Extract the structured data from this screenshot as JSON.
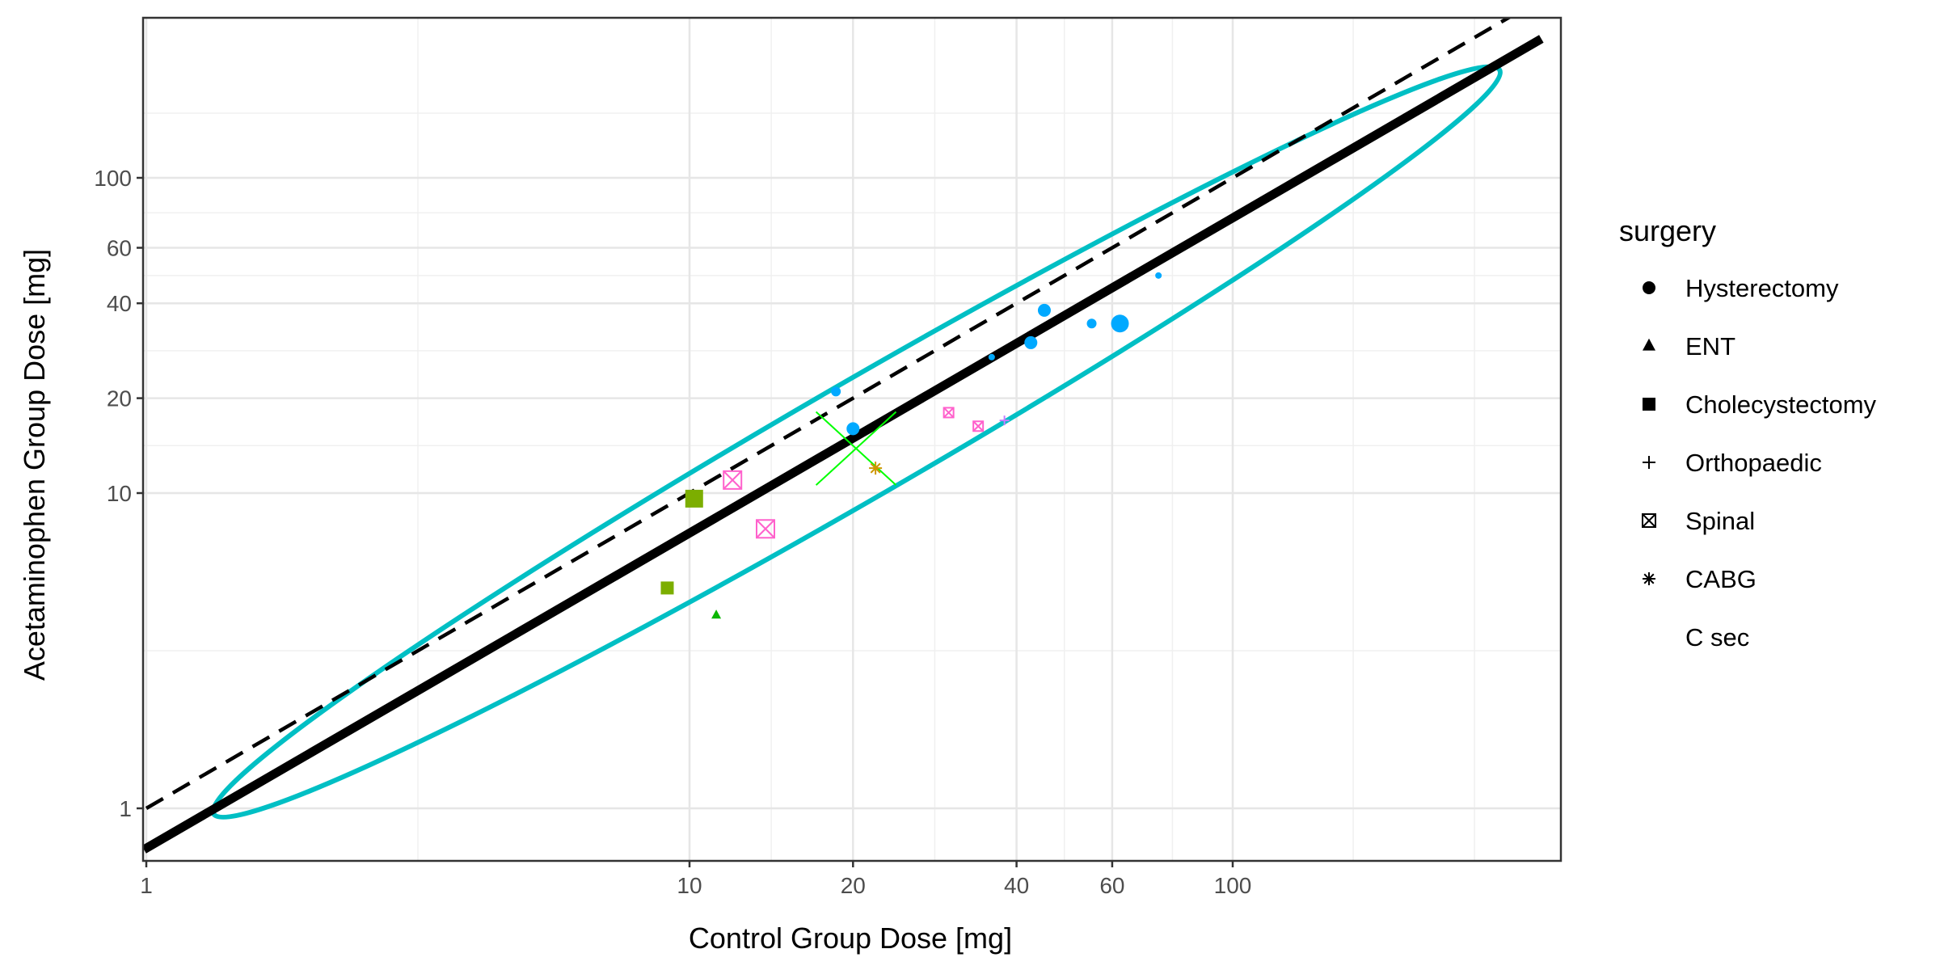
{
  "chart_data": {
    "type": "scatter",
    "xlabel": "Control Group Dose [mg]",
    "ylabel": "Acetaminophen Group Dose [mg]",
    "x_scale": "log",
    "y_scale": "log",
    "xlim": [
      1,
      370
    ],
    "ylim": [
      0.7,
      420
    ],
    "x_ticks": [
      1,
      10,
      20,
      40,
      60,
      100
    ],
    "x_tick_labels": [
      "1",
      "10",
      "20",
      "40",
      "60",
      "100"
    ],
    "y_ticks": [
      1,
      10,
      20,
      40,
      60,
      100
    ],
    "y_tick_labels": [
      "1",
      "10",
      "20",
      "40",
      "60",
      "100"
    ],
    "grid": true,
    "legend_title": "surgery",
    "legend_position": "right",
    "legend": [
      {
        "label": "Hysterectomy",
        "shape": "circle"
      },
      {
        "label": "ENT",
        "shape": "triangle"
      },
      {
        "label": "Cholecystectomy",
        "shape": "square"
      },
      {
        "label": "Orthopaedic",
        "shape": "plus"
      },
      {
        "label": "Spinal",
        "shape": "boxed-x"
      },
      {
        "label": "CABG",
        "shape": "asterisk"
      },
      {
        "label": "C sec",
        "shape": "none"
      }
    ],
    "colors": {
      "Hysterectomy": "#00a9ff",
      "ENT": "#0cb702",
      "Cholecystectomy": "#7cae00",
      "Orthopaedic": "#c77cff",
      "Spinal": "#ff61cc",
      "CABG": "#cd9600",
      "ellipse": "#00bfc4",
      "summary_cross": "#00ff00",
      "identity_line": "#000000",
      "fit_line": "#000000"
    },
    "points": [
      {
        "surgery": "Hysterectomy",
        "x": 18.6,
        "y": 21,
        "size": "small"
      },
      {
        "surgery": "Hysterectomy",
        "x": 20,
        "y": 16,
        "size": "medium"
      },
      {
        "surgery": "Hysterectomy",
        "x": 45,
        "y": 38,
        "size": "medium"
      },
      {
        "surgery": "Hysterectomy",
        "x": 42.5,
        "y": 30,
        "size": "medium"
      },
      {
        "surgery": "Hysterectomy",
        "x": 36,
        "y": 27,
        "size": "tiny"
      },
      {
        "surgery": "Hysterectomy",
        "x": 55,
        "y": 34.5,
        "size": "small"
      },
      {
        "surgery": "Hysterectomy",
        "x": 62,
        "y": 34.5,
        "size": "large"
      },
      {
        "surgery": "Hysterectomy",
        "x": 73,
        "y": 49,
        "size": "tiny"
      },
      {
        "surgery": "ENT",
        "x": 11.2,
        "y": 4.1,
        "size": "small"
      },
      {
        "surgery": "Cholecystectomy",
        "x": 10.2,
        "y": 9.6,
        "size": "large"
      },
      {
        "surgery": "Cholecystectomy",
        "x": 9.1,
        "y": 5.0,
        "size": "medium"
      },
      {
        "surgery": "Orthopaedic",
        "x": 38,
        "y": 17,
        "size": "small"
      },
      {
        "surgery": "Spinal",
        "x": 12,
        "y": 11,
        "size": "large"
      },
      {
        "surgery": "Spinal",
        "x": 13.8,
        "y": 7.7,
        "size": "large"
      },
      {
        "surgery": "Spinal",
        "x": 30,
        "y": 18,
        "size": "small"
      },
      {
        "surgery": "Spinal",
        "x": 34,
        "y": 16.3,
        "size": "small"
      },
      {
        "surgery": "CABG",
        "x": 22,
        "y": 12,
        "size": "medium"
      }
    ],
    "identity_line": {
      "style": "dashed",
      "from": [
        1,
        1
      ],
      "to": [
        370,
        370
      ]
    },
    "fit_line": {
      "style": "solid-thick",
      "from": [
        0.99,
        0.74
      ],
      "to": [
        370,
        276
      ]
    },
    "summary_cross": {
      "x": 20.3,
      "y": 14,
      "arm_ends": [
        [
          17.1,
          18.1
        ],
        [
          24,
          10.6
        ],
        [
          17.1,
          10.6
        ],
        [
          24,
          18.1
        ]
      ]
    },
    "ellipse": {
      "end_a": [
        1.33,
        0.96
      ],
      "end_b": [
        310,
        220
      ],
      "upper_mid": [
        20,
        22
      ],
      "lower_mid": [
        20,
        8.3
      ]
    }
  }
}
